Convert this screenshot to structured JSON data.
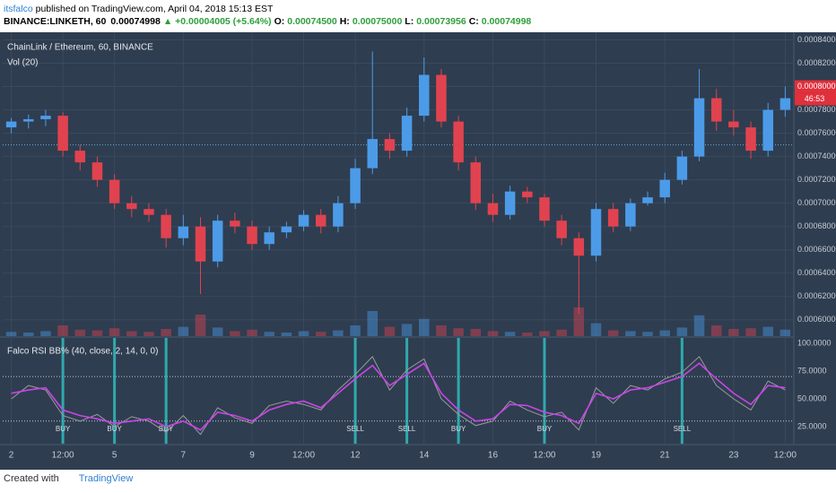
{
  "header": {
    "author": "itsfalco",
    "published": " published on TradingView.com, April 04, 2018 15:13 EST",
    "quote": [
      {
        "text": "BINANCE:LINKETH, 60",
        "color": "#000000"
      },
      {
        "text": "0.00074998",
        "color": "#000000"
      },
      {
        "text": "▲ +0.00004005 (+5.64%)",
        "color": "#2e9e3a"
      },
      {
        "text": "O:",
        "color": "#000000"
      },
      {
        "text": "0.00074500",
        "color": "#2e9e3a"
      },
      {
        "text": "H:",
        "color": "#000000"
      },
      {
        "text": "0.00075000",
        "color": "#2e9e3a"
      },
      {
        "text": "L:",
        "color": "#000000"
      },
      {
        "text": "0.00073956",
        "color": "#2e9e3a"
      },
      {
        "text": "C:",
        "color": "#000000"
      },
      {
        "text": "0.00074998",
        "color": "#2e9e3a"
      }
    ]
  },
  "chart_data": [
    {
      "type": "candlestick",
      "title": "ChainLink / Ethereum, 60, BINANCE",
      "volume_label": "Vol (20)",
      "categories": [
        "2",
        null,
        null,
        "12:00",
        null,
        null,
        "5",
        null,
        null,
        null,
        "7",
        null,
        null,
        null,
        "9",
        null,
        null,
        "12:00",
        null,
        null,
        "12",
        null,
        null,
        null,
        "14",
        null,
        null,
        null,
        "16",
        null,
        null,
        "12:00",
        null,
        null,
        "19",
        null,
        null,
        null,
        "21",
        null,
        null,
        null,
        "23",
        null,
        null,
        "12:00"
      ],
      "open": [
        0.000765,
        0.00077,
        0.000772,
        0.000775,
        0.000745,
        0.000735,
        0.00072,
        0.0007,
        0.000695,
        0.00069,
        0.00067,
        0.00068,
        0.00065,
        0.000685,
        0.00068,
        0.000665,
        0.000675,
        0.00068,
        0.00069,
        0.00068,
        0.0007,
        0.00073,
        0.000755,
        0.000745,
        0.000775,
        0.00081,
        0.00077,
        0.000735,
        0.0007,
        0.00069,
        0.00071,
        0.000705,
        0.000685,
        0.00067,
        0.000655,
        0.000695,
        0.00068,
        0.0007,
        0.000705,
        0.00072,
        0.00074,
        0.00079,
        0.00077,
        0.000765,
        0.000745,
        0.00078
      ],
      "high": [
        0.000773,
        0.000776,
        0.00078,
        0.000778,
        0.00075,
        0.00074,
        0.000725,
        0.000706,
        0.0007,
        0.000695,
        0.00069,
        0.000688,
        0.00069,
        0.000692,
        0.000685,
        0.00068,
        0.000684,
        0.000694,
        0.000695,
        0.000706,
        0.000738,
        0.00083,
        0.00076,
        0.000782,
        0.000825,
        0.000815,
        0.000775,
        0.00074,
        0.000708,
        0.000715,
        0.000714,
        0.000708,
        0.00069,
        0.000675,
        0.0007,
        0.0007,
        0.000704,
        0.00071,
        0.000726,
        0.000745,
        0.000815,
        0.000798,
        0.00078,
        0.00077,
        0.000786,
        0.0008
      ],
      "low": [
        0.00076,
        0.000764,
        0.000766,
        0.00074,
        0.000728,
        0.000714,
        0.000695,
        0.000688,
        0.000684,
        0.000662,
        0.000664,
        0.000622,
        0.000645,
        0.000674,
        0.00066,
        0.00066,
        0.00067,
        0.000676,
        0.000674,
        0.000675,
        0.000695,
        0.000725,
        0.000738,
        0.00074,
        0.00077,
        0.000765,
        0.000728,
        0.000694,
        0.000684,
        0.000686,
        0.0007,
        0.00068,
        0.000664,
        0.000605,
        0.00065,
        0.000675,
        0.000676,
        0.000698,
        0.0007,
        0.000716,
        0.000736,
        0.000762,
        0.000758,
        0.000738,
        0.00074,
        0.000774
      ],
      "close": [
        0.00077,
        0.000772,
        0.000775,
        0.000745,
        0.000735,
        0.00072,
        0.0007,
        0.000695,
        0.00069,
        0.00067,
        0.00068,
        0.00065,
        0.000685,
        0.00068,
        0.000665,
        0.000675,
        0.00068,
        0.00069,
        0.00068,
        0.0007,
        0.00073,
        0.000755,
        0.000745,
        0.000775,
        0.00081,
        0.00077,
        0.000735,
        0.0007,
        0.00069,
        0.00071,
        0.000705,
        0.000685,
        0.00067,
        0.000655,
        0.000695,
        0.00068,
        0.0007,
        0.000705,
        0.00072,
        0.00074,
        0.00079,
        0.00077,
        0.000765,
        0.000745,
        0.00078,
        0.00079
      ],
      "volume": [
        12,
        10,
        14,
        30,
        18,
        16,
        22,
        14,
        12,
        20,
        26,
        60,
        24,
        14,
        18,
        12,
        10,
        14,
        12,
        16,
        30,
        70,
        26,
        34,
        48,
        30,
        22,
        20,
        14,
        12,
        10,
        14,
        18,
        80,
        36,
        16,
        14,
        12,
        16,
        24,
        58,
        30,
        20,
        22,
        26,
        18
      ],
      "up_color": "#4c9be8",
      "down_color": "#e0434f",
      "ylim": [
        0.000586,
        0.000845
      ],
      "yticks": [
        {
          "value": 0.0006,
          "label": "0.00060000"
        },
        {
          "value": 0.00062,
          "label": "0.00062000"
        },
        {
          "value": 0.00064,
          "label": "0.00064000"
        },
        {
          "value": 0.00066,
          "label": "0.00066000"
        },
        {
          "value": 0.00068,
          "label": "0.00068000"
        },
        {
          "value": 0.0007,
          "label": "0.00070000"
        },
        {
          "value": 0.00072,
          "label": "0.00072000"
        },
        {
          "value": 0.00074,
          "label": "0.00074000"
        },
        {
          "value": 0.00076,
          "label": "0.00076000"
        },
        {
          "value": 0.00078,
          "label": "0.00078000"
        },
        {
          "value": 0.0008,
          "label": "0.00080000"
        },
        {
          "value": 0.00082,
          "label": "0.00082000"
        },
        {
          "value": 0.00084,
          "label": "0.00084000"
        }
      ],
      "reference_line": 0.00075,
      "last_price": 0.00080001,
      "countdown": "46:53",
      "grid": true
    },
    {
      "type": "line",
      "title": "Falco RSI BB% (40, close, 2, 14, 0, 0)",
      "series": [
        {
          "color": "#9a9a9a",
          "values": [
            50,
            62,
            58,
            35,
            30,
            36,
            25,
            34,
            30,
            20,
            35,
            18,
            42,
            33,
            28,
            44,
            48,
            45,
            40,
            58,
            72,
            88,
            58,
            76,
            86,
            50,
            36,
            26,
            30,
            48,
            40,
            34,
            38,
            22,
            60,
            46,
            62,
            58,
            68,
            74,
            88,
            62,
            50,
            40,
            66,
            58
          ]
        },
        {
          "color": "#c845e8",
          "values": [
            55,
            58,
            60,
            40,
            35,
            32,
            28,
            30,
            32,
            25,
            30,
            22,
            38,
            35,
            30,
            40,
            45,
            48,
            42,
            55,
            68,
            80,
            62,
            72,
            82,
            55,
            40,
            30,
            32,
            45,
            44,
            38,
            35,
            28,
            55,
            50,
            58,
            60,
            65,
            70,
            82,
            68,
            55,
            45,
            62,
            60
          ]
        }
      ],
      "signals": [
        null,
        null,
        null,
        "BUY",
        null,
        null,
        "BUY",
        null,
        null,
        "BUY",
        null,
        null,
        null,
        null,
        null,
        null,
        null,
        null,
        null,
        null,
        "SELL",
        null,
        null,
        "SELL",
        null,
        null,
        "BUY",
        null,
        null,
        null,
        null,
        "BUY",
        null,
        null,
        null,
        null,
        null,
        null,
        null,
        "SELL",
        null,
        null,
        null,
        null,
        null,
        null
      ],
      "signal_color": "#2ec4c4",
      "bands": [
        30,
        70
      ],
      "ylim": [
        9.7,
        104.8
      ],
      "yticks": [
        {
          "value": 25,
          "label": "25.0000"
        },
        {
          "value": 50,
          "label": "50.0000"
        },
        {
          "value": 75,
          "label": "75.0000"
        },
        {
          "value": 100,
          "label": "100.0000"
        }
      ]
    }
  ],
  "footer": {
    "created": "Created with",
    "brand": "TradingView"
  }
}
